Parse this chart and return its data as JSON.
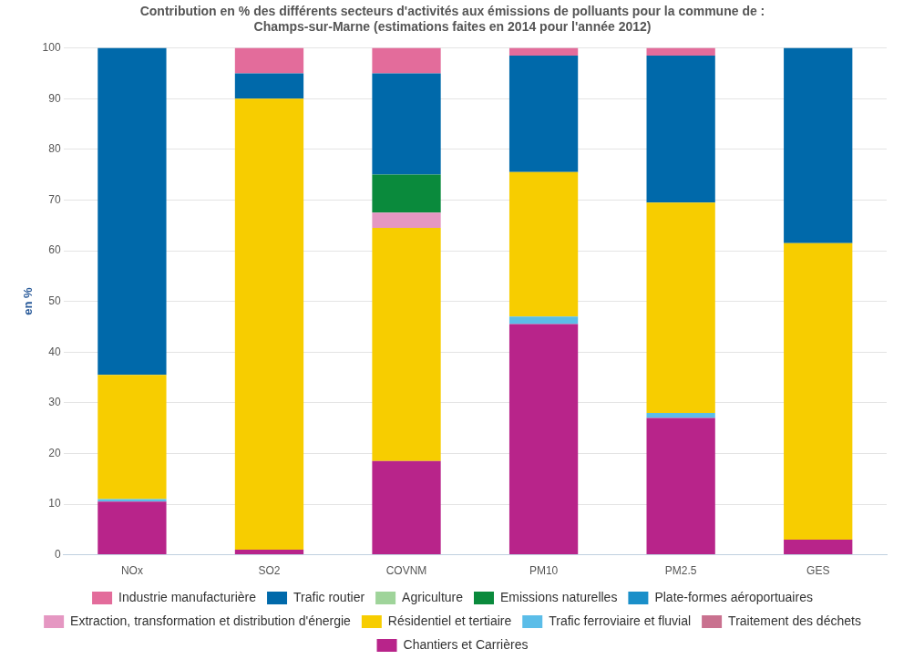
{
  "chart_data": {
    "type": "bar",
    "stacked": true,
    "title": "Contribution en % des différents secteurs d'activités aux émissions de polluants pour la commune de : Champs-sur-Marne (estimations faites en 2014 pour l'année 2012)",
    "ylabel": "en %",
    "categories": [
      "NOx",
      "SO2",
      "COVNM",
      "PM10",
      "PM2.5",
      "GES"
    ],
    "series": [
      {
        "name": "Chantiers et Carrières",
        "color": "#b8248a",
        "values": [
          10.5,
          1,
          18.5,
          45.5,
          27,
          3
        ]
      },
      {
        "name": "Traitement des déchets",
        "color": "#c9718f",
        "values": [
          0,
          0,
          0,
          0,
          0,
          0
        ]
      },
      {
        "name": "Trafic ferroviaire et fluvial",
        "color": "#5bbde8",
        "values": [
          0.5,
          0,
          0,
          1.5,
          1,
          0
        ]
      },
      {
        "name": "Résidentiel et tertiaire",
        "color": "#f7cd00",
        "values": [
          24.5,
          89,
          46,
          28.5,
          41.5,
          58.5
        ]
      },
      {
        "name": "Extraction, transformation et distribution d'énergie",
        "color": "#e597c2",
        "values": [
          0,
          0,
          3,
          0,
          0,
          0
        ]
      },
      {
        "name": "Plate-formes aéroportuaires",
        "color": "#1a8fc9",
        "values": [
          0,
          0,
          0,
          0,
          0,
          0
        ]
      },
      {
        "name": "Emissions naturelles",
        "color": "#0a8a3c",
        "values": [
          0,
          0,
          7.5,
          0,
          0,
          0
        ]
      },
      {
        "name": "Agriculture",
        "color": "#9fd49a",
        "values": [
          0,
          0,
          0,
          0,
          0,
          0
        ]
      },
      {
        "name": "Trafic routier",
        "color": "#0069aa",
        "values": [
          64.5,
          5,
          20,
          23,
          29,
          38.5
        ]
      },
      {
        "name": "Industrie manufacturière",
        "color": "#e36c9b",
        "values": [
          0,
          5,
          5,
          1.5,
          1.5,
          0
        ]
      }
    ],
    "ylim": [
      0,
      100
    ],
    "yticks": [
      0,
      10,
      20,
      30,
      40,
      50,
      60,
      70,
      80,
      90,
      100
    ],
    "grid": "y",
    "legend": "bottom"
  }
}
